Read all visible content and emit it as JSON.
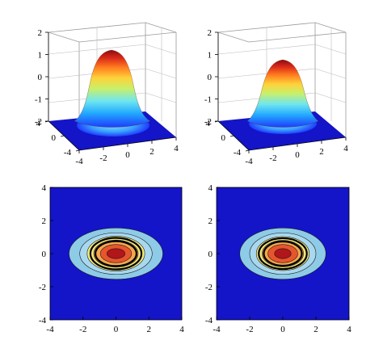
{
  "chart_data": [
    {
      "type": "surface",
      "panel": "top-left",
      "title": "",
      "zlim": [
        -2,
        2
      ],
      "xlim": [
        -4,
        4
      ],
      "ylim": [
        -4,
        4
      ],
      "z_ticks": [
        -2,
        -1,
        0,
        1,
        2
      ],
      "z_tick_labels": [
        "-2",
        "-1",
        "0",
        "1",
        "2"
      ],
      "x_ticks": [
        -4,
        -2,
        0,
        2,
        4
      ],
      "x_tick_labels": [
        "-4",
        "-2",
        "0",
        "2",
        "4"
      ],
      "y_ticks": [
        -4,
        0,
        4
      ],
      "y_tick_labels": [
        "-4",
        "0",
        "4"
      ],
      "colormap": "jet",
      "base_color": "#1414c8",
      "peak_z": 1.4,
      "floor_z": -2,
      "grid": true
    },
    {
      "type": "surface",
      "panel": "top-right",
      "title": "",
      "zlim": [
        -2,
        2
      ],
      "xlim": [
        -4,
        4
      ],
      "ylim": [
        -4,
        4
      ],
      "z_ticks": [
        -2,
        -1,
        0,
        1,
        2
      ],
      "z_tick_labels": [
        "-2",
        "-1",
        "0",
        "1",
        "2"
      ],
      "x_ticks": [
        -4,
        -2,
        0,
        2,
        4
      ],
      "x_tick_labels": [
        "-4",
        "-2",
        "0",
        "2",
        "4"
      ],
      "y_ticks": [
        -4,
        0,
        4
      ],
      "y_tick_labels": [
        "-4",
        "0",
        "4"
      ],
      "colormap": "jet",
      "base_color": "#1414c8",
      "peak_z": 1.1,
      "floor_z": -2,
      "grid": true
    },
    {
      "type": "contour",
      "panel": "bottom-left",
      "title": "",
      "xlim": [
        -4,
        4
      ],
      "ylim": [
        -4,
        4
      ],
      "x_ticks": [
        -4,
        -2,
        0,
        2,
        4
      ],
      "x_tick_labels": [
        "-4",
        "-2",
        "0",
        "2",
        "4"
      ],
      "y_ticks": [
        -4,
        -2,
        0,
        2,
        4
      ],
      "y_tick_labels": [
        "-4",
        "-2",
        "0",
        "2",
        "4"
      ],
      "background": "#1414c8",
      "levels": [
        {
          "rx": 2.85,
          "ry": 1.55,
          "color": "#8ecbe6"
        },
        {
          "rx": 2.2,
          "ry": 1.25,
          "color": "#a8d8f0"
        },
        {
          "rx": 1.75,
          "ry": 1.05,
          "color": "#f2e77a"
        },
        {
          "rx": 1.35,
          "ry": 0.82,
          "color": "#f3a64d"
        },
        {
          "rx": 0.95,
          "ry": 0.55,
          "color": "#e8552c"
        },
        {
          "rx": 0.55,
          "ry": 0.3,
          "color": "#b1161a"
        }
      ],
      "bold_contours": [
        {
          "rx": 1.55,
          "ry": 0.95
        },
        {
          "rx": 1.25,
          "ry": 0.75
        }
      ]
    },
    {
      "type": "contour",
      "panel": "bottom-right",
      "title": "",
      "xlim": [
        -4,
        4
      ],
      "ylim": [
        -4,
        4
      ],
      "x_ticks": [
        -4,
        -2,
        0,
        2,
        4
      ],
      "x_tick_labels": [
        "-4",
        "-2",
        "0",
        "2",
        "4"
      ],
      "y_ticks": [
        -4,
        -2,
        0,
        2,
        4
      ],
      "y_tick_labels": [
        "-4",
        "-2",
        "0",
        "2",
        "4"
      ],
      "background": "#1414c8",
      "levels": [
        {
          "rx": 2.6,
          "ry": 1.55,
          "color": "#8ecbe6"
        },
        {
          "rx": 2.0,
          "ry": 1.25,
          "color": "#a8d8f0"
        },
        {
          "rx": 1.6,
          "ry": 1.02,
          "color": "#f2e77a"
        },
        {
          "rx": 1.25,
          "ry": 0.8,
          "color": "#f3a64d"
        },
        {
          "rx": 0.9,
          "ry": 0.55,
          "color": "#e8552c"
        },
        {
          "rx": 0.5,
          "ry": 0.3,
          "color": "#b1161a"
        }
      ],
      "bold_contours": [
        {
          "rx": 1.45,
          "ry": 0.93
        },
        {
          "rx": 1.15,
          "ry": 0.73
        }
      ]
    }
  ]
}
